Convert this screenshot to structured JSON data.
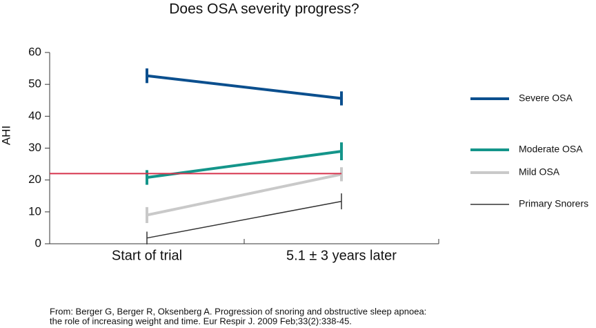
{
  "chart_data": {
    "type": "line",
    "title": "Does OSA severity progress?",
    "y_label": "AHI",
    "categories": [
      "Start of trial",
      "5.1 ± 3 years later"
    ],
    "series": [
      {
        "name": "Severe OSA",
        "color": "#0b4f8e",
        "values": [
          52.7,
          45.6
        ],
        "errors": [
          2.3,
          2.2
        ]
      },
      {
        "name": "Moderate OSA",
        "color": "#14958a",
        "values": [
          20.8,
          29.0
        ],
        "errors": [
          2.3,
          2.8
        ]
      },
      {
        "name": "Mild OSA",
        "color": "#c9c9c9",
        "values": [
          9.0,
          21.8
        ],
        "errors": [
          2.5,
          2.2
        ]
      },
      {
        "name": "Primary Snorers",
        "color": "#333333",
        "values": [
          1.8,
          13.3
        ],
        "errors": [
          2.0,
          2.5
        ]
      }
    ],
    "reference_line": {
      "value": 22,
      "color": "#d6334c"
    },
    "ylim": [
      0,
      60
    ],
    "yticks": [
      0,
      10,
      20,
      30,
      40,
      50,
      60
    ],
    "source": [
      "From: Berger G, Berger R, Oksenberg A. Progression of snoring and obstructive sleep apnoea:",
      "the role of increasing weight and time. Eur Respir J. 2009 Feb;33(2):338-45."
    ]
  }
}
